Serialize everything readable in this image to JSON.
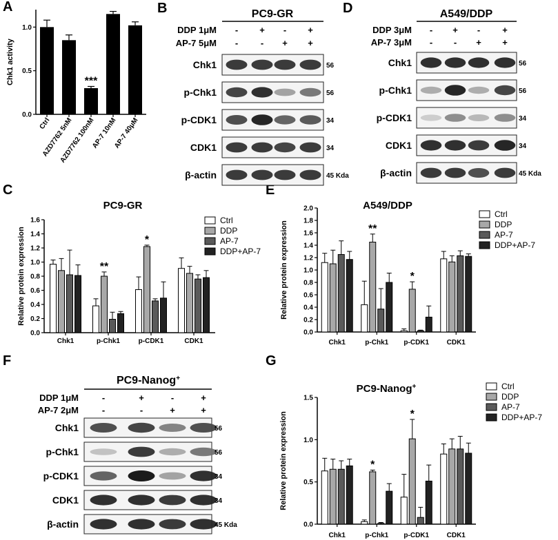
{
  "panels": {
    "A": "A",
    "B": "B",
    "C": "C",
    "D": "D",
    "E": "E",
    "F": "F",
    "G": "G"
  },
  "chart_data": [
    {
      "id": "A",
      "type": "bar",
      "ylabel": "Chk1 activity",
      "ylim": [
        0,
        1.2
      ],
      "yticks": [
        "0.0",
        "0.5",
        "1.0"
      ],
      "categories": [
        "Ctrl",
        "AZD7762 5nM",
        "AZD7762 100nM",
        "AP-7 10nM",
        "AP-7 40μM"
      ],
      "values": [
        1.0,
        0.85,
        0.3,
        1.15,
        1.02
      ],
      "errors": [
        0.08,
        0.06,
        0.02,
        0.03,
        0.04
      ],
      "annotations": [
        "",
        "",
        "***",
        "",
        ""
      ],
      "colors": {
        "bar": "#000000"
      }
    },
    {
      "id": "C",
      "type": "bar",
      "title": "PC9-GR",
      "ylabel": "Relative protein expression",
      "ylim": [
        0,
        1.6
      ],
      "yticks": [
        "0.0",
        "0.2",
        "0.4",
        "0.6",
        "0.8",
        "1.0",
        "1.2",
        "1.4",
        "1.6"
      ],
      "categories": [
        "Chk1",
        "p-Chk1",
        "p-CDK1",
        "CDK1"
      ],
      "series": [
        {
          "name": "Ctrl",
          "values": [
            0.97,
            0.38,
            0.61,
            0.91
          ],
          "errors": [
            0.06,
            0.1,
            0.18,
            0.15
          ]
        },
        {
          "name": "DDP",
          "values": [
            0.88,
            0.8,
            1.22,
            0.84
          ],
          "errors": [
            0.17,
            0.06,
            0.02,
            0.1
          ]
        },
        {
          "name": "AP-7",
          "values": [
            0.82,
            0.19,
            0.45,
            0.76
          ],
          "errors": [
            0.35,
            0.1,
            0.03,
            0.06
          ]
        },
        {
          "name": "DDP+AP-7",
          "values": [
            0.81,
            0.27,
            0.49,
            0.78
          ],
          "errors": [
            0.15,
            0.03,
            0.23,
            0.1
          ]
        }
      ],
      "annotations": [
        {
          "category": 1,
          "series": 1,
          "text": "**"
        },
        {
          "category": 2,
          "series": 1,
          "text": "*"
        }
      ]
    },
    {
      "id": "E",
      "type": "bar",
      "title": "A549/DDP",
      "ylabel": "Relative protein expression",
      "ylim": [
        0,
        2.0
      ],
      "yticks": [
        "0.0",
        "0.2",
        "0.4",
        "0.6",
        "0.8",
        "1.0",
        "1.2",
        "1.4",
        "1.6",
        "1.8",
        "2.0"
      ],
      "categories": [
        "Chk1",
        "p-Chk1",
        "p-CDK1",
        "CDK1"
      ],
      "series": [
        {
          "name": "Ctrl",
          "values": [
            1.12,
            0.44,
            0.02,
            1.18
          ],
          "errors": [
            0.15,
            0.38,
            0.03,
            0.12
          ]
        },
        {
          "name": "DDP",
          "values": [
            1.1,
            1.45,
            0.69,
            1.13
          ],
          "errors": [
            0.22,
            0.13,
            0.12,
            0.1
          ]
        },
        {
          "name": "AP-7",
          "values": [
            1.25,
            0.37,
            0.02,
            1.23
          ],
          "errors": [
            0.22,
            0.33,
            0.01,
            0.08
          ]
        },
        {
          "name": "DDP+AP-7",
          "values": [
            1.17,
            0.8,
            0.24,
            1.22
          ],
          "errors": [
            0.13,
            0.15,
            0.18,
            0.04
          ]
        }
      ],
      "annotations": [
        {
          "category": 1,
          "series": 1,
          "text": "**"
        },
        {
          "category": 2,
          "series": 1,
          "text": "*"
        }
      ]
    },
    {
      "id": "G",
      "type": "bar",
      "title": "PC9-Nanog",
      "title_sup": "+",
      "ylabel": "Relative protein expression",
      "ylim": [
        0,
        1.5
      ],
      "yticks": [
        "0.0",
        "0.5",
        "1.0",
        "1.5"
      ],
      "categories": [
        "Chk1",
        "p-Chk1",
        "p-CDK1",
        "CDK1"
      ],
      "series": [
        {
          "name": "Ctrl",
          "values": [
            0.63,
            0.03,
            0.32,
            0.83
          ],
          "errors": [
            0.15,
            0.02,
            0.27,
            0.12
          ]
        },
        {
          "name": "DDP",
          "values": [
            0.65,
            0.62,
            1.01,
            0.89
          ],
          "errors": [
            0.12,
            0.02,
            0.23,
            0.12
          ]
        },
        {
          "name": "AP-7",
          "values": [
            0.65,
            0.01,
            0.08,
            0.89
          ],
          "errors": [
            0.1,
            0.01,
            0.12,
            0.15
          ]
        },
        {
          "name": "DDP+AP-7",
          "values": [
            0.69,
            0.39,
            0.51,
            0.84
          ],
          "errors": [
            0.08,
            0.09,
            0.19,
            0.12
          ]
        }
      ],
      "annotations": [
        {
          "category": 1,
          "series": 1,
          "text": "*"
        },
        {
          "category": 2,
          "series": 1,
          "text": "*"
        }
      ]
    }
  ],
  "series_fills": [
    "#ffffff",
    "#a8a8a8",
    "#5a5a5a",
    "#222222"
  ],
  "blots": [
    {
      "id": "B",
      "title": "PC9-GR",
      "treatments": [
        {
          "label": "DDP 1μM",
          "signs": [
            "-",
            "+",
            "-",
            "+"
          ]
        },
        {
          "label": "AP-7 5μM",
          "signs": [
            "-",
            "-",
            "+",
            "+"
          ]
        }
      ],
      "rows": [
        {
          "name": "Chk1",
          "mw": "56",
          "intensity": [
            0.85,
            0.85,
            0.85,
            0.85
          ]
        },
        {
          "name": "p-Chk1",
          "mw": "56",
          "intensity": [
            0.8,
            0.9,
            0.35,
            0.55
          ]
        },
        {
          "name": "p-CDK1",
          "mw": "34",
          "intensity": [
            0.75,
            0.95,
            0.65,
            0.7
          ]
        },
        {
          "name": "CDK1",
          "mw": "34",
          "intensity": [
            0.85,
            0.85,
            0.8,
            0.85
          ]
        },
        {
          "name": "β-actin",
          "mw": "45 Kda",
          "intensity": [
            0.85,
            0.85,
            0.85,
            0.85
          ]
        }
      ]
    },
    {
      "id": "D",
      "title": "A549/DDP",
      "treatments": [
        {
          "label": "DDP 3μM",
          "signs": [
            "-",
            "+",
            "-",
            "+"
          ]
        },
        {
          "label": "AP-7 3μM",
          "signs": [
            "-",
            "-",
            "+",
            "+"
          ]
        }
      ],
      "rows": [
        {
          "name": "Chk1",
          "mw": "56",
          "intensity": [
            0.9,
            0.9,
            0.9,
            0.9
          ]
        },
        {
          "name": "p-Chk1",
          "mw": "56",
          "intensity": [
            0.3,
            0.95,
            0.3,
            0.8
          ]
        },
        {
          "name": "p-CDK1",
          "mw": "34",
          "intensity": [
            0.15,
            0.45,
            0.25,
            0.45
          ]
        },
        {
          "name": "CDK1",
          "mw": "34",
          "intensity": [
            0.9,
            0.9,
            0.85,
            0.95
          ]
        },
        {
          "name": "β-actin",
          "mw": "45 Kda",
          "intensity": [
            0.85,
            0.85,
            0.75,
            0.85
          ]
        }
      ]
    },
    {
      "id": "F",
      "title": "PC9-Nanog",
      "title_sup": "+",
      "treatments": [
        {
          "label": "DDP 1μM",
          "signs": [
            "-",
            "+",
            "-",
            "+"
          ]
        },
        {
          "label": "AP-7 2μM",
          "signs": [
            "-",
            "-",
            "+",
            "+"
          ]
        }
      ],
      "rows": [
        {
          "name": "Chk1",
          "mw": "56",
          "intensity": [
            0.75,
            0.8,
            0.5,
            0.75
          ]
        },
        {
          "name": "p-Chk1",
          "mw": "56",
          "intensity": [
            0.2,
            0.85,
            0.3,
            0.55
          ]
        },
        {
          "name": "p-CDK1",
          "mw": "34",
          "intensity": [
            0.65,
            1.0,
            0.35,
            0.9
          ]
        },
        {
          "name": "CDK1",
          "mw": "34",
          "intensity": [
            0.9,
            0.9,
            0.85,
            0.9
          ]
        },
        {
          "name": "β-actin",
          "mw": "45 Kda",
          "intensity": [
            0.9,
            0.9,
            0.85,
            0.9
          ]
        }
      ]
    }
  ]
}
